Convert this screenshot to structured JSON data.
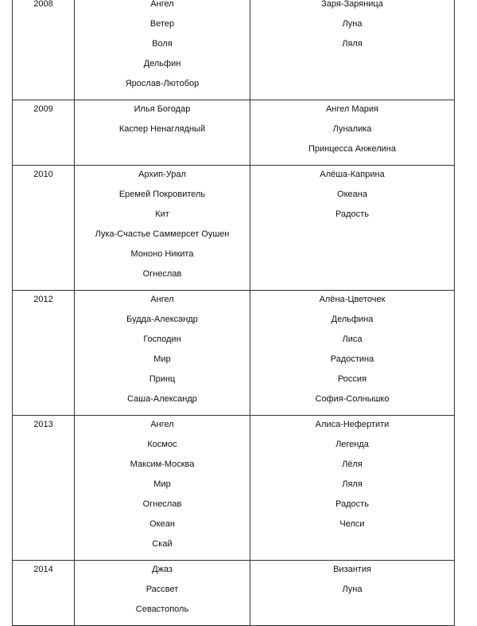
{
  "rows": [
    {
      "year": "2008",
      "boys": [
        "Ангел",
        "Ветер",
        "Воля",
        "Дельфин",
        "Ярослав-Лютобор"
      ],
      "girls": [
        "Заря-Заряница",
        "Луна",
        "Ляля"
      ]
    },
    {
      "year": "2009",
      "boys": [
        "Илья Богодар",
        "Каспер Ненаглядный"
      ],
      "girls": [
        "Ангел Мария",
        "Луналика",
        "Принцесса Анжелина"
      ]
    },
    {
      "year": "2010",
      "boys": [
        "Архип-Урал",
        "Еремей Покровитель",
        "Кит",
        "Лука-Счастье Саммерсет Оушен",
        "Мононо Никита",
        "Огнеслав"
      ],
      "girls": [
        "Алёша-Каприна",
        "Океана",
        "Радость"
      ]
    },
    {
      "year": "2012",
      "boys": [
        "Ангел",
        "Будда-Александр",
        "Господин",
        "Мир",
        "Принц",
        "Саша-Александр"
      ],
      "girls": [
        "Алёна-Цветочек",
        "Дельфина",
        "Лиса",
        "Радостина",
        "Россия",
        "София-Солнышко"
      ]
    },
    {
      "year": "2013",
      "boys": [
        "Ангел",
        "Космос",
        "Максим-Москва",
        "Мир",
        "Огнеслав",
        "Океан",
        "Скай"
      ],
      "girls": [
        "Алиса-Нефертити",
        "Легенда",
        "Лёля",
        "Ляля",
        "Радость",
        "Челси"
      ]
    },
    {
      "year": "2014",
      "boys": [
        "Джаз",
        "Рассвет",
        "Севастополь"
      ],
      "girls": [
        "Византия",
        "Луна"
      ]
    }
  ]
}
